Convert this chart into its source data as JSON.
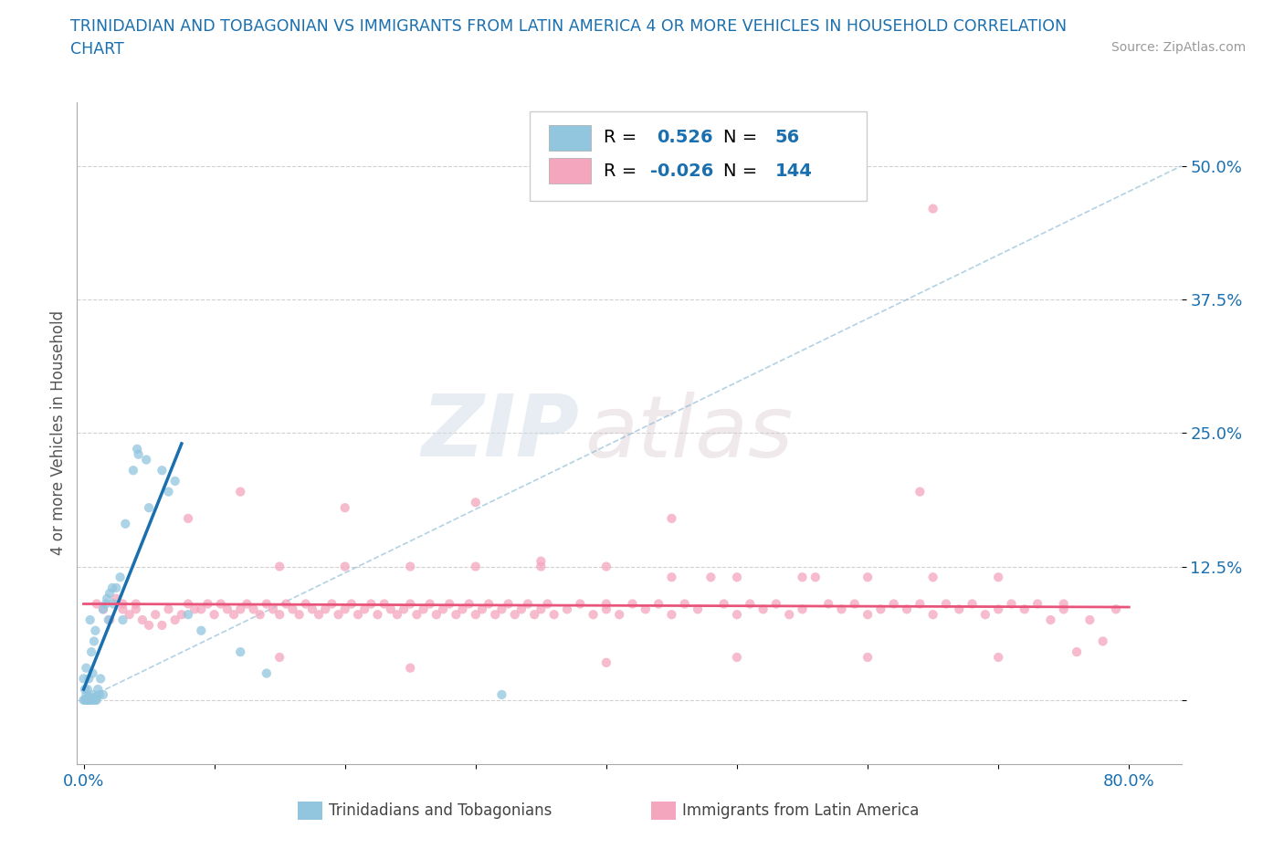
{
  "title_line1": "TRINIDADIAN AND TOBAGONIAN VS IMMIGRANTS FROM LATIN AMERICA 4 OR MORE VEHICLES IN HOUSEHOLD CORRELATION",
  "title_line2": "CHART",
  "source": "Source: ZipAtlas.com",
  "r_blue": 0.526,
  "n_blue": 56,
  "r_pink": -0.026,
  "n_pink": 144,
  "ylabel": "4 or more Vehicles in Household",
  "xlim": [
    -0.005,
    0.84
  ],
  "ylim": [
    -0.06,
    0.56
  ],
  "xticks": [
    0.0,
    0.1,
    0.2,
    0.3,
    0.4,
    0.5,
    0.6,
    0.7,
    0.8
  ],
  "xticklabels": [
    "0.0%",
    "",
    "",
    "",
    "",
    "",
    "",
    "",
    "80.0%"
  ],
  "yticks": [
    0.0,
    0.125,
    0.25,
    0.375,
    0.5
  ],
  "yticklabels": [
    "",
    "12.5%",
    "25.0%",
    "37.5%",
    "50.0%"
  ],
  "watermark_zip": "ZIP",
  "watermark_atlas": "atlas",
  "legend_labels": [
    "Trinidadians and Tobagonians",
    "Immigrants from Latin America"
  ],
  "blue_color": "#92c5de",
  "pink_color": "#f4a6be",
  "blue_line_color": "#1a6faf",
  "pink_line_color": "#e8547a",
  "title_color": "#1a6faf",
  "tick_color": "#1a6faf",
  "grid_color": "#cccccc",
  "blue_scatter": [
    [
      0.0,
      0.0
    ],
    [
      0.001,
      0.0
    ],
    [
      0.002,
      0.0
    ],
    [
      0.002,
      0.005
    ],
    [
      0.003,
      0.0
    ],
    [
      0.003,
      0.002
    ],
    [
      0.004,
      0.0
    ],
    [
      0.004,
      0.003
    ],
    [
      0.005,
      0.0
    ],
    [
      0.005,
      0.0
    ],
    [
      0.006,
      0.0
    ],
    [
      0.006,
      0.001
    ],
    [
      0.007,
      0.005
    ],
    [
      0.008,
      0.0
    ],
    [
      0.008,
      0.002
    ],
    [
      0.009,
      0.0
    ],
    [
      0.01,
      0.0
    ],
    [
      0.01,
      0.003
    ],
    [
      0.011,
      0.01
    ],
    [
      0.012,
      0.005
    ],
    [
      0.013,
      0.02
    ],
    [
      0.015,
      0.005
    ],
    [
      0.015,
      0.085
    ],
    [
      0.017,
      0.09
    ],
    [
      0.018,
      0.095
    ],
    [
      0.019,
      0.075
    ],
    [
      0.02,
      0.1
    ],
    [
      0.022,
      0.105
    ],
    [
      0.023,
      0.09
    ],
    [
      0.025,
      0.105
    ],
    [
      0.028,
      0.115
    ],
    [
      0.03,
      0.075
    ],
    [
      0.032,
      0.165
    ],
    [
      0.038,
      0.215
    ],
    [
      0.041,
      0.235
    ],
    [
      0.042,
      0.23
    ],
    [
      0.048,
      0.225
    ],
    [
      0.05,
      0.18
    ],
    [
      0.06,
      0.215
    ],
    [
      0.065,
      0.195
    ],
    [
      0.07,
      0.205
    ],
    [
      0.08,
      0.08
    ],
    [
      0.09,
      0.065
    ],
    [
      0.12,
      0.045
    ],
    [
      0.14,
      0.025
    ],
    [
      0.0,
      0.02
    ],
    [
      0.001,
      0.01
    ],
    [
      0.002,
      0.03
    ],
    [
      0.003,
      0.01
    ],
    [
      0.004,
      0.02
    ],
    [
      0.005,
      0.075
    ],
    [
      0.006,
      0.045
    ],
    [
      0.007,
      0.025
    ],
    [
      0.008,
      0.055
    ],
    [
      0.009,
      0.065
    ],
    [
      0.32,
      0.005
    ]
  ],
  "pink_scatter": [
    [
      0.01,
      0.09
    ],
    [
      0.015,
      0.085
    ],
    [
      0.02,
      0.075
    ],
    [
      0.025,
      0.095
    ],
    [
      0.03,
      0.085
    ],
    [
      0.03,
      0.09
    ],
    [
      0.035,
      0.08
    ],
    [
      0.04,
      0.085
    ],
    [
      0.04,
      0.09
    ],
    [
      0.045,
      0.075
    ],
    [
      0.05,
      0.07
    ],
    [
      0.055,
      0.08
    ],
    [
      0.06,
      0.07
    ],
    [
      0.065,
      0.085
    ],
    [
      0.07,
      0.075
    ],
    [
      0.075,
      0.08
    ],
    [
      0.08,
      0.09
    ],
    [
      0.08,
      0.17
    ],
    [
      0.085,
      0.085
    ],
    [
      0.09,
      0.085
    ],
    [
      0.095,
      0.09
    ],
    [
      0.1,
      0.08
    ],
    [
      0.105,
      0.09
    ],
    [
      0.11,
      0.085
    ],
    [
      0.115,
      0.08
    ],
    [
      0.12,
      0.085
    ],
    [
      0.12,
      0.195
    ],
    [
      0.125,
      0.09
    ],
    [
      0.13,
      0.085
    ],
    [
      0.135,
      0.08
    ],
    [
      0.14,
      0.09
    ],
    [
      0.145,
      0.085
    ],
    [
      0.15,
      0.08
    ],
    [
      0.15,
      0.125
    ],
    [
      0.155,
      0.09
    ],
    [
      0.16,
      0.085
    ],
    [
      0.165,
      0.08
    ],
    [
      0.17,
      0.09
    ],
    [
      0.175,
      0.085
    ],
    [
      0.18,
      0.08
    ],
    [
      0.185,
      0.085
    ],
    [
      0.19,
      0.09
    ],
    [
      0.195,
      0.08
    ],
    [
      0.2,
      0.085
    ],
    [
      0.2,
      0.125
    ],
    [
      0.205,
      0.09
    ],
    [
      0.21,
      0.08
    ],
    [
      0.215,
      0.085
    ],
    [
      0.22,
      0.09
    ],
    [
      0.225,
      0.08
    ],
    [
      0.23,
      0.09
    ],
    [
      0.235,
      0.085
    ],
    [
      0.24,
      0.08
    ],
    [
      0.245,
      0.085
    ],
    [
      0.25,
      0.09
    ],
    [
      0.25,
      0.125
    ],
    [
      0.255,
      0.08
    ],
    [
      0.26,
      0.085
    ],
    [
      0.265,
      0.09
    ],
    [
      0.27,
      0.08
    ],
    [
      0.275,
      0.085
    ],
    [
      0.28,
      0.09
    ],
    [
      0.285,
      0.08
    ],
    [
      0.29,
      0.085
    ],
    [
      0.295,
      0.09
    ],
    [
      0.3,
      0.08
    ],
    [
      0.3,
      0.125
    ],
    [
      0.3,
      0.185
    ],
    [
      0.305,
      0.085
    ],
    [
      0.31,
      0.09
    ],
    [
      0.315,
      0.08
    ],
    [
      0.32,
      0.085
    ],
    [
      0.325,
      0.09
    ],
    [
      0.33,
      0.08
    ],
    [
      0.335,
      0.085
    ],
    [
      0.34,
      0.09
    ],
    [
      0.345,
      0.08
    ],
    [
      0.35,
      0.085
    ],
    [
      0.35,
      0.125
    ],
    [
      0.35,
      0.13
    ],
    [
      0.355,
      0.09
    ],
    [
      0.36,
      0.08
    ],
    [
      0.37,
      0.085
    ],
    [
      0.38,
      0.09
    ],
    [
      0.39,
      0.08
    ],
    [
      0.4,
      0.085
    ],
    [
      0.4,
      0.09
    ],
    [
      0.4,
      0.125
    ],
    [
      0.41,
      0.08
    ],
    [
      0.42,
      0.09
    ],
    [
      0.43,
      0.085
    ],
    [
      0.44,
      0.09
    ],
    [
      0.45,
      0.08
    ],
    [
      0.45,
      0.115
    ],
    [
      0.46,
      0.09
    ],
    [
      0.47,
      0.085
    ],
    [
      0.48,
      0.115
    ],
    [
      0.49,
      0.09
    ],
    [
      0.5,
      0.08
    ],
    [
      0.5,
      0.115
    ],
    [
      0.51,
      0.09
    ],
    [
      0.52,
      0.085
    ],
    [
      0.53,
      0.09
    ],
    [
      0.54,
      0.08
    ],
    [
      0.55,
      0.085
    ],
    [
      0.55,
      0.115
    ],
    [
      0.56,
      0.115
    ],
    [
      0.57,
      0.09
    ],
    [
      0.58,
      0.085
    ],
    [
      0.59,
      0.09
    ],
    [
      0.6,
      0.08
    ],
    [
      0.6,
      0.115
    ],
    [
      0.61,
      0.085
    ],
    [
      0.62,
      0.09
    ],
    [
      0.63,
      0.085
    ],
    [
      0.64,
      0.09
    ],
    [
      0.64,
      0.195
    ],
    [
      0.65,
      0.08
    ],
    [
      0.65,
      0.115
    ],
    [
      0.66,
      0.09
    ],
    [
      0.67,
      0.085
    ],
    [
      0.68,
      0.09
    ],
    [
      0.69,
      0.08
    ],
    [
      0.7,
      0.085
    ],
    [
      0.7,
      0.115
    ],
    [
      0.71,
      0.09
    ],
    [
      0.72,
      0.085
    ],
    [
      0.73,
      0.09
    ],
    [
      0.74,
      0.075
    ],
    [
      0.75,
      0.085
    ],
    [
      0.75,
      0.09
    ],
    [
      0.76,
      0.045
    ],
    [
      0.77,
      0.075
    ],
    [
      0.78,
      0.055
    ],
    [
      0.79,
      0.085
    ],
    [
      0.65,
      0.46
    ],
    [
      0.15,
      0.04
    ],
    [
      0.25,
      0.03
    ],
    [
      0.4,
      0.035
    ],
    [
      0.5,
      0.04
    ],
    [
      0.6,
      0.04
    ],
    [
      0.7,
      0.04
    ],
    [
      0.2,
      0.18
    ],
    [
      0.45,
      0.17
    ]
  ],
  "blue_line_x": [
    0.0,
    0.075
  ],
  "blue_line_y": [
    0.01,
    0.24
  ],
  "pink_line_x": [
    0.0,
    0.8
  ],
  "pink_line_y": [
    0.09,
    0.087
  ],
  "diag_line_x": [
    0.0,
    0.84
  ],
  "diag_line_y": [
    0.0,
    0.5
  ]
}
